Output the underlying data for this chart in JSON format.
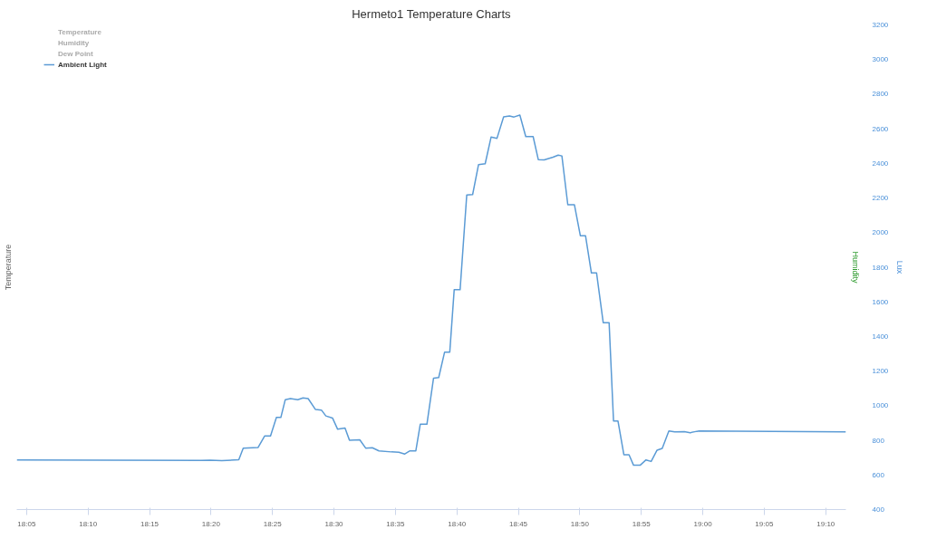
{
  "chart_data": {
    "type": "line",
    "title": "Hermeto1 Temperature Charts",
    "ylabel": "Temperature",
    "y3label": "Humidity",
    "y2label": "Lux",
    "xlim": [
      18.07,
      19.194
    ],
    "xticks": [
      {
        "value": 18.0833,
        "label": "18:05"
      },
      {
        "value": 18.1667,
        "label": "18:10"
      },
      {
        "value": 18.25,
        "label": "18:15"
      },
      {
        "value": 18.3333,
        "label": "18:20"
      },
      {
        "value": 18.4167,
        "label": "18:25"
      },
      {
        "value": 18.5,
        "label": "18:30"
      },
      {
        "value": 18.5833,
        "label": "18:35"
      },
      {
        "value": 18.6667,
        "label": "18:40"
      },
      {
        "value": 18.75,
        "label": "18:45"
      },
      {
        "value": 18.8333,
        "label": "18:50"
      },
      {
        "value": 18.9167,
        "label": "18:55"
      },
      {
        "value": 19.0,
        "label": "19:00"
      },
      {
        "value": 19.0833,
        "label": "19:05"
      },
      {
        "value": 19.1667,
        "label": "19:10"
      }
    ],
    "y2lim": [
      400,
      3200
    ],
    "y2ticks": [
      400,
      600,
      800,
      1000,
      1200,
      1400,
      1600,
      1800,
      2000,
      2200,
      2400,
      2600,
      2800,
      3000,
      3200
    ],
    "legend": "top left",
    "grid": false,
    "marker": "none",
    "line_style": "solid",
    "series": [
      {
        "name": "Temperature",
        "color": "#cccccc"
      },
      {
        "name": "Humidity",
        "color": "#cccccc"
      },
      {
        "name": "Dew Point",
        "color": "#cccccc"
      },
      {
        "name": "Ambient Light",
        "color": "#5b9bd5",
        "axis": "y2",
        "x": [
          18.07,
          18.32,
          18.332,
          18.348,
          18.371,
          18.377,
          18.397,
          18.406,
          18.414,
          18.422,
          18.428,
          18.434,
          18.441,
          18.451,
          18.458,
          18.465,
          18.475,
          18.483,
          18.489,
          18.498,
          18.505,
          18.515,
          18.521,
          18.535,
          18.543,
          18.552,
          18.561,
          18.578,
          18.588,
          18.596,
          18.603,
          18.611,
          18.617,
          18.626,
          18.635,
          18.642,
          18.65,
          18.657,
          18.663,
          18.671,
          18.68,
          18.688,
          18.696,
          18.705,
          18.713,
          18.721,
          18.73,
          18.738,
          18.744,
          18.752,
          18.76,
          18.77,
          18.777,
          18.785,
          18.797,
          18.804,
          18.809,
          18.817,
          18.826,
          18.834,
          18.841,
          18.849,
          18.856,
          18.865,
          18.873,
          18.879,
          18.885,
          18.893,
          18.9,
          18.906,
          18.915,
          18.923,
          18.93,
          18.938,
          18.945,
          18.954,
          18.962,
          18.975,
          18.983,
          18.992,
          18.995,
          19.194
        ],
        "values": [
          687,
          684,
          685,
          682,
          688,
          755,
          758,
          825,
          825,
          932,
          932,
          1035,
          1041,
          1035,
          1045,
          1041,
          978,
          975,
          941,
          929,
          864,
          871,
          801,
          803,
          755,
          757,
          739,
          733,
          731,
          721,
          739,
          739,
          893,
          893,
          1159,
          1163,
          1310,
          1310,
          1670,
          1670,
          2217,
          2220,
          2393,
          2398,
          2552,
          2545,
          2669,
          2674,
          2668,
          2679,
          2555,
          2555,
          2422,
          2420,
          2436,
          2448,
          2443,
          2161,
          2161,
          1982,
          1982,
          1767,
          1767,
          1480,
          1480,
          912,
          912,
          717,
          717,
          657,
          656,
          687,
          678,
          743,
          753,
          854,
          849,
          850,
          844,
          852,
          854,
          849
        ]
      }
    ]
  }
}
